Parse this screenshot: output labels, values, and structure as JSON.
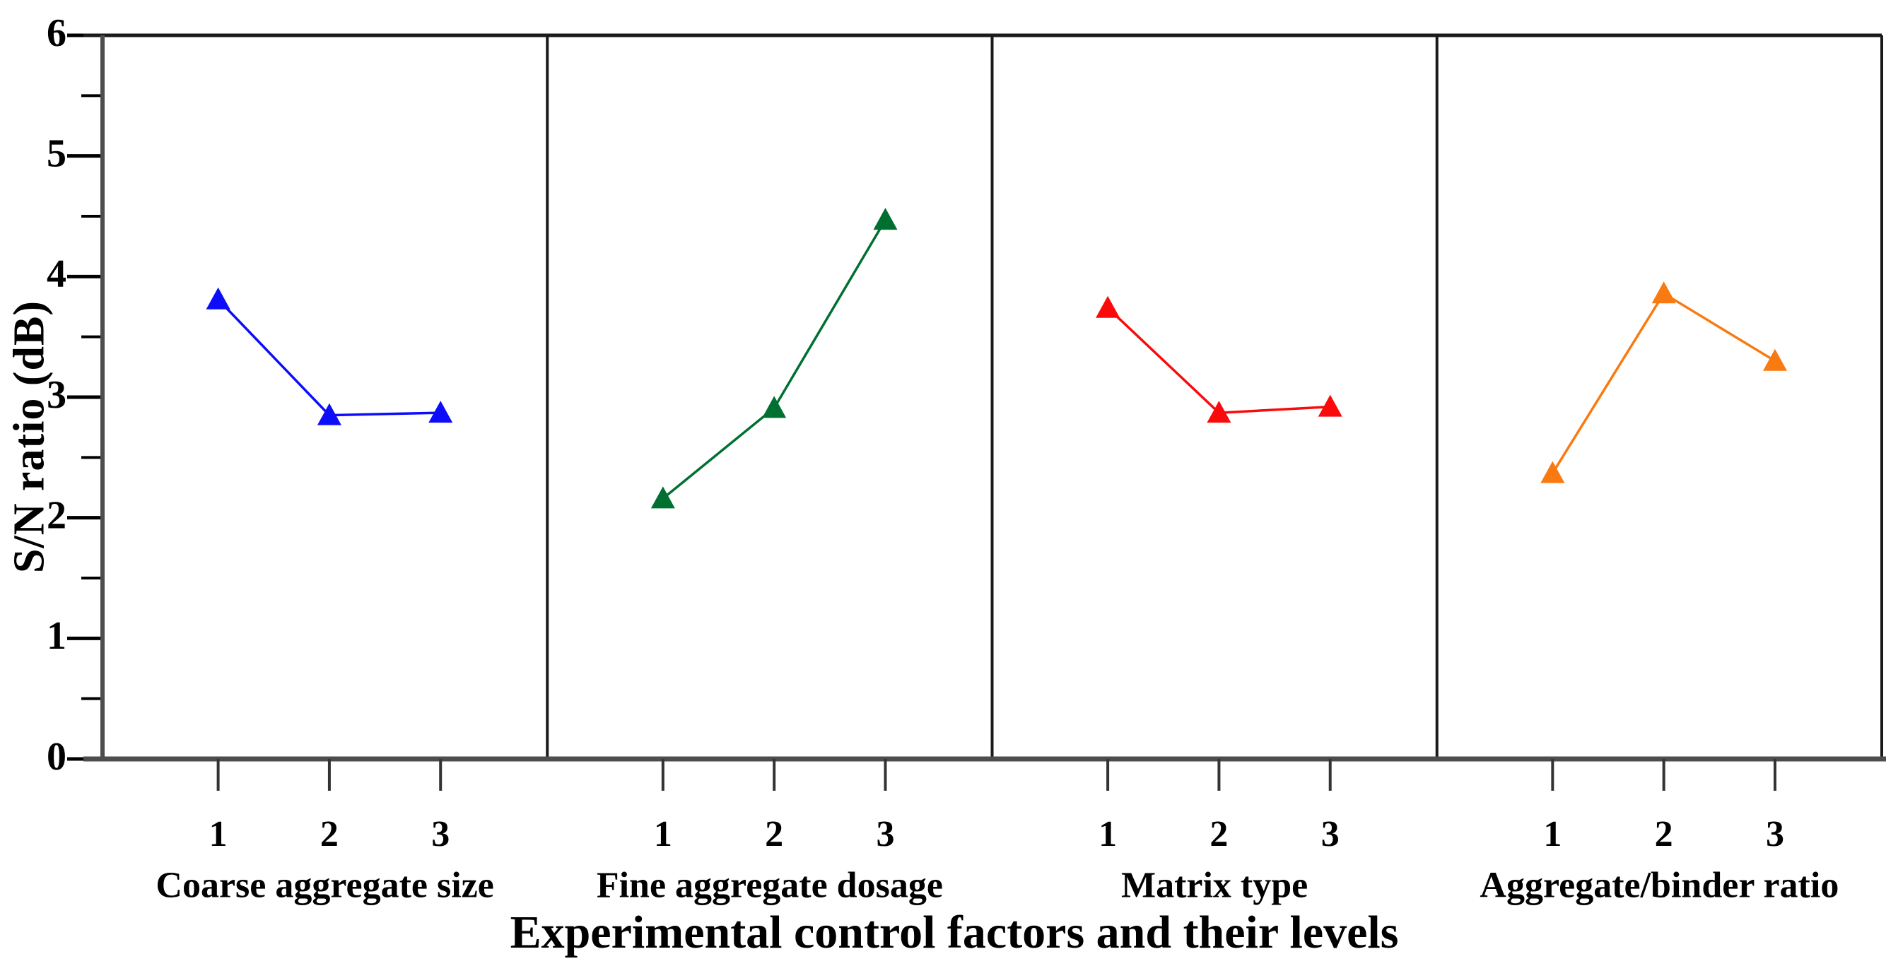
{
  "chart_data": {
    "type": "line",
    "title": "",
    "xlabel": "Experimental control factors and their levels",
    "ylabel": "S/N ratio (dB)",
    "ylim": [
      0,
      6
    ],
    "y_major_ticks": [
      0,
      1,
      2,
      3,
      4,
      5,
      6
    ],
    "y_minor_tick_step": 0.5,
    "levels": [
      "1",
      "2",
      "3"
    ],
    "grid": false,
    "legend": "none",
    "marker": "triangle-up",
    "panels": [
      {
        "factor": "Coarse aggregate size",
        "color": "#0D0DFA",
        "values": [
          3.81,
          2.85,
          2.87
        ]
      },
      {
        "factor": "Fine aggregate dosage",
        "color": "#007031",
        "values": [
          2.16,
          2.91,
          4.47
        ]
      },
      {
        "factor": "Matrix type",
        "color": "#FA0A0A",
        "values": [
          3.74,
          2.87,
          2.92
        ]
      },
      {
        "factor": "Aggregate/binder ratio",
        "color": "#FA7A12",
        "values": [
          2.37,
          3.86,
          3.3
        ]
      }
    ],
    "axis_colors": {
      "frame": "#1a1a1a",
      "axis_line": "#4d4d4d",
      "tick": "#000000",
      "text": "#000000"
    }
  }
}
